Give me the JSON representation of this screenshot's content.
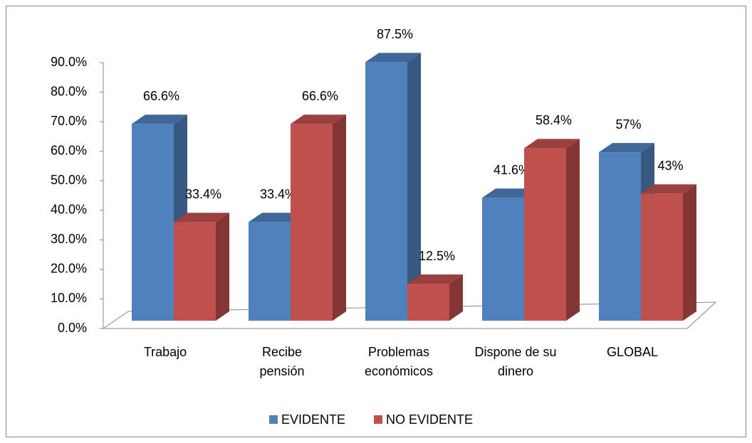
{
  "chart_data": {
    "type": "bar3d",
    "categories": [
      "Trabajo",
      "Recibe\npensión",
      "Problemas\neconómicos",
      "Dispone de su\ndinero",
      "GLOBAL"
    ],
    "series": [
      {
        "name": "EVIDENTE",
        "color": "#4f81bd",
        "values": [
          66.6,
          33.4,
          87.5,
          41.6,
          57
        ],
        "value_labels": [
          "66.6%",
          "33.4%",
          "87.5%",
          "41.6%",
          "57%"
        ]
      },
      {
        "name": "NO EVIDENTE",
        "color": "#c0504d",
        "values": [
          33.4,
          66.6,
          12.5,
          58.4,
          43
        ],
        "value_labels": [
          "33.4%",
          "66.6%",
          "12.5%",
          "58.4%",
          "43%"
        ]
      }
    ],
    "ylim": [
      0,
      90
    ],
    "yticks": [
      {
        "value": 0,
        "label": "0.0%"
      },
      {
        "value": 10,
        "label": "10.0%"
      },
      {
        "value": 20,
        "label": "20.0%"
      },
      {
        "value": 30,
        "label": "30.0%"
      },
      {
        "value": 40,
        "label": "40.0%"
      },
      {
        "value": 50,
        "label": "50.0%"
      },
      {
        "value": 60,
        "label": "60.0%"
      },
      {
        "value": 70,
        "label": "70.0%"
      },
      {
        "value": 80,
        "label": "80.0%"
      },
      {
        "value": 90,
        "label": "90.0%"
      }
    ],
    "legend": "bottom"
  }
}
